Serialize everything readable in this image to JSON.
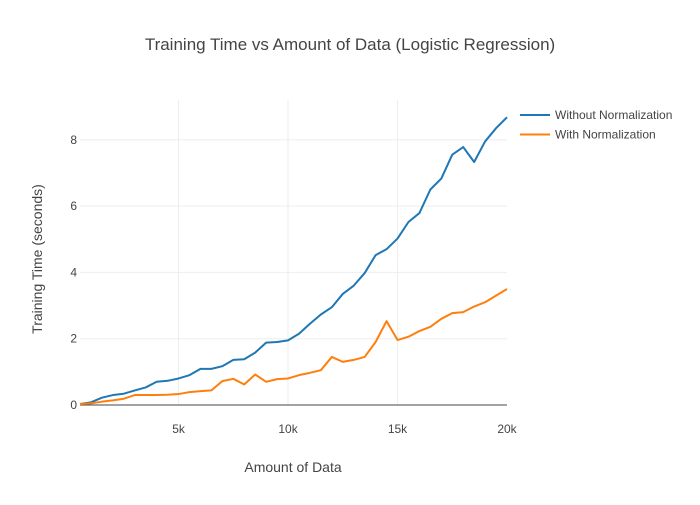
{
  "chart_data": {
    "type": "line",
    "title": "Training Time vs Amount of Data (Logistic Regression)",
    "xlabel": "Amount of Data",
    "ylabel": "Training Time (seconds)",
    "xlim": [
      500,
      20000
    ],
    "ylim": [
      0,
      9.2
    ],
    "grid": true,
    "legend_position": "top-right",
    "x_ticks": [
      5000,
      10000,
      15000,
      20000
    ],
    "x_tick_labels": [
      "5k",
      "10k",
      "15k",
      "20k"
    ],
    "y_ticks": [
      0,
      2,
      4,
      6,
      8
    ],
    "y_tick_labels": [
      "0",
      "2",
      "4",
      "6",
      "8"
    ],
    "x": [
      500,
      1000,
      1500,
      2000,
      2500,
      3000,
      3500,
      4000,
      4500,
      5000,
      5500,
      6000,
      6500,
      7000,
      7500,
      8000,
      8500,
      9000,
      9500,
      10000,
      10500,
      11000,
      11500,
      12000,
      12500,
      13000,
      13500,
      14000,
      14500,
      15000,
      15500,
      16000,
      16500,
      17000,
      17500,
      18000,
      18500,
      19000,
      19500,
      20000
    ],
    "series": [
      {
        "name": "Without Normalization",
        "color": "#1f77b4",
        "values": [
          0.03,
          0.08,
          0.22,
          0.3,
          0.34,
          0.44,
          0.53,
          0.7,
          0.73,
          0.8,
          0.9,
          1.09,
          1.09,
          1.17,
          1.36,
          1.38,
          1.58,
          1.88,
          1.9,
          1.95,
          2.15,
          2.45,
          2.73,
          2.95,
          3.35,
          3.6,
          3.98,
          4.52,
          4.7,
          5.02,
          5.52,
          5.79,
          6.5,
          6.83,
          7.55,
          7.78,
          7.33,
          7.95,
          8.35,
          8.68
        ]
      },
      {
        "name": "With Normalization",
        "color": "#ff7f0e",
        "values": [
          0.03,
          0.05,
          0.1,
          0.14,
          0.19,
          0.3,
          0.3,
          0.3,
          0.31,
          0.33,
          0.39,
          0.42,
          0.44,
          0.72,
          0.79,
          0.62,
          0.92,
          0.7,
          0.78,
          0.8,
          0.9,
          0.97,
          1.05,
          1.45,
          1.3,
          1.36,
          1.45,
          1.9,
          2.53,
          1.96,
          2.06,
          2.23,
          2.36,
          2.6,
          2.77,
          2.8,
          2.97,
          3.1,
          3.3,
          3.5
        ]
      }
    ]
  }
}
